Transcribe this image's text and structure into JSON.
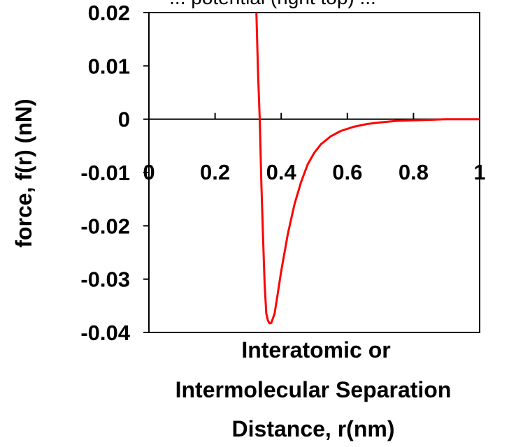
{
  "chart_data": {
    "type": "line",
    "title": "... potential (right top) ...",
    "ylabel": "force, f(r) (nN)",
    "xlabel_lines": [
      "Interatomic or",
      "Intermolecular Separation",
      "Distance, r(nm)"
    ],
    "xlim": [
      0,
      1
    ],
    "ylim": [
      -0.04,
      0.02
    ],
    "x_ticks": [
      0,
      0.2,
      0.4,
      0.6,
      0.8,
      1
    ],
    "x_tick_labels": [
      "0",
      "0.2",
      "0.4",
      "0.6",
      "0.8",
      "1"
    ],
    "y_ticks": [
      0.02,
      0.01,
      0,
      -0.01,
      -0.02,
      -0.03,
      -0.04
    ],
    "y_tick_labels": [
      "0.02",
      "0.01",
      "0",
      "-0.01",
      "-0.02",
      "-0.03",
      "-0.04"
    ],
    "grid": false,
    "legend": "none",
    "series": [
      {
        "color": "#ff0000",
        "x": [
          0.325,
          0.33,
          0.335,
          0.34,
          0.345,
          0.35,
          0.355,
          0.36,
          0.365,
          0.37,
          0.38,
          0.39,
          0.4,
          0.42,
          0.44,
          0.46,
          0.48,
          0.5,
          0.52,
          0.55,
          0.58,
          0.62,
          0.66,
          0.7,
          0.75,
          0.8,
          0.86,
          0.9,
          0.95,
          1.0
        ],
        "y": [
          0.02,
          0.0085,
          0.0,
          -0.012,
          -0.022,
          -0.031,
          -0.0365,
          -0.0378,
          -0.0383,
          -0.0382,
          -0.0365,
          -0.0325,
          -0.0285,
          -0.0215,
          -0.016,
          -0.0118,
          -0.0085,
          -0.0063,
          -0.0047,
          -0.0032,
          -0.0022,
          -0.0014,
          -0.0009,
          -0.0006,
          -0.0003,
          -0.0002,
          -0.0001,
          0.0,
          0.0,
          0.0
        ]
      }
    ]
  }
}
